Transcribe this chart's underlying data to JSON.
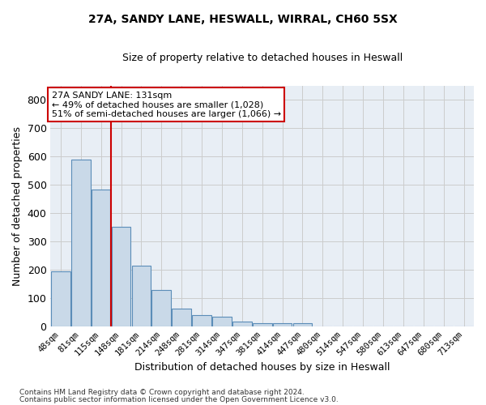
{
  "title_line1": "27A, SANDY LANE, HESWALL, WIRRAL, CH60 5SX",
  "title_line2": "Size of property relative to detached houses in Heswall",
  "xlabel": "Distribution of detached houses by size in Heswall",
  "ylabel": "Number of detached properties",
  "bar_color": "#c9d9e8",
  "bar_edge_color": "#5b8db8",
  "grid_color": "#cccccc",
  "bg_color": "#e8eef5",
  "categories": [
    "48sqm",
    "81sqm",
    "115sqm",
    "148sqm",
    "181sqm",
    "214sqm",
    "248sqm",
    "281sqm",
    "314sqm",
    "347sqm",
    "381sqm",
    "414sqm",
    "447sqm",
    "480sqm",
    "514sqm",
    "547sqm",
    "580sqm",
    "613sqm",
    "647sqm",
    "680sqm",
    "713sqm"
  ],
  "values": [
    193,
    588,
    482,
    352,
    215,
    130,
    63,
    40,
    33,
    16,
    10,
    11,
    10,
    0,
    0,
    0,
    0,
    0,
    0,
    0,
    0
  ],
  "vline_x": 2.5,
  "vline_color": "#cc0000",
  "annotation_line1": "27A SANDY LANE: 131sqm",
  "annotation_line2": "← 49% of detached houses are smaller (1,028)",
  "annotation_line3": "51% of semi-detached houses are larger (1,066) →",
  "ann_box_color": "#ffffff",
  "ann_edge_color": "#cc0000",
  "ylim": [
    0,
    850
  ],
  "yticks": [
    0,
    100,
    200,
    300,
    400,
    500,
    600,
    700,
    800
  ],
  "footer1": "Contains HM Land Registry data © Crown copyright and database right 2024.",
  "footer2": "Contains public sector information licensed under the Open Government Licence v3.0."
}
